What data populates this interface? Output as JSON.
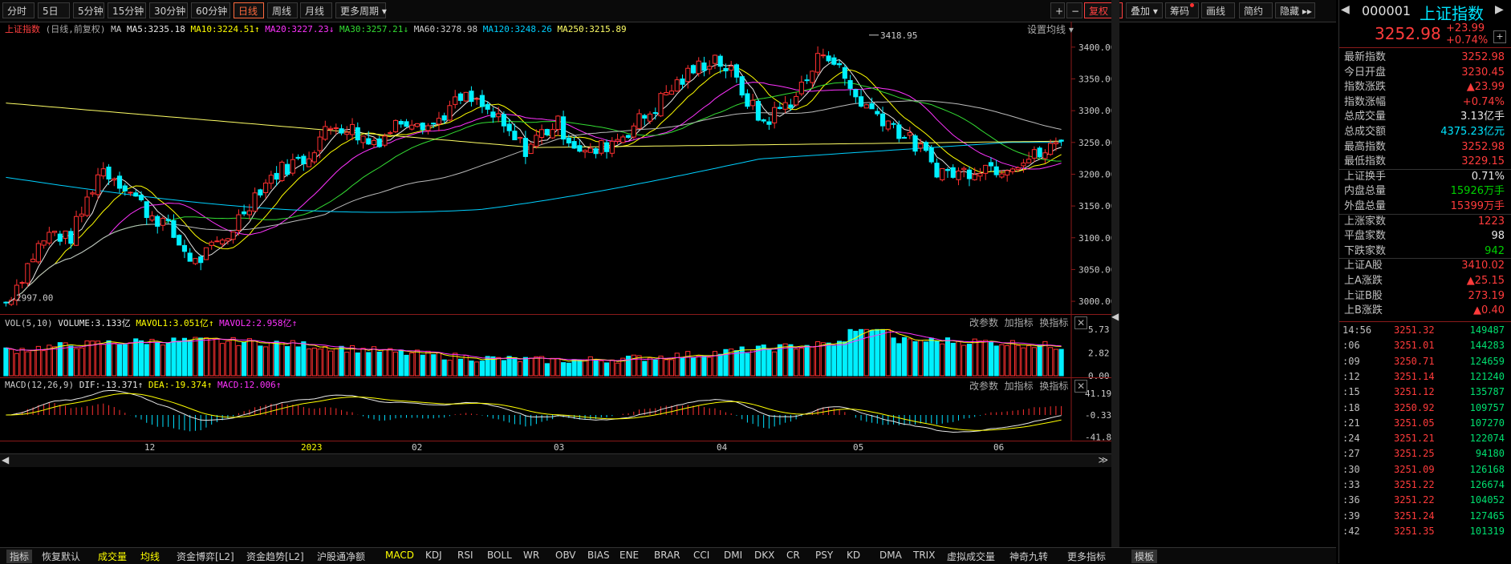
{
  "toolbar": {
    "periods": [
      "分时",
      "5日",
      "5分钟",
      "15分钟",
      "30分钟",
      "60分钟",
      "日线",
      "周线",
      "月线",
      "更多周期"
    ],
    "active": "日线",
    "right_buttons": [
      "+",
      "−",
      "复权",
      "叠加",
      "筹码",
      "画线",
      "简约",
      "隐藏"
    ]
  },
  "main_legend": {
    "index_name": "上证指数",
    "sub": "(日线,前复权)",
    "ma": "MA",
    "ma5": "MA5:3235.18",
    "ma10": "MA10:3224.51",
    "ma20": "MA20:3227.23",
    "ma30": "MA30:3257.21",
    "ma60": "MA60:3278.98",
    "ma120": "MA120:3248.26",
    "ma250": "MA250:3215.89",
    "settings": "设置均线"
  },
  "price_axis": [
    "3400.00",
    "3350.00",
    "3300.00",
    "3250.00",
    "3200.00",
    "3150.00",
    "3100.00",
    "3050.00",
    "3000.00"
  ],
  "annotations": {
    "high": "3418.95",
    "low": "2997.00"
  },
  "vol_legend": {
    "label": "VOL(5,10)",
    "volume": "VOLUME:3.133亿",
    "mavol1": "MAVOL1:3.051亿",
    "mavol2": "MAVOL2:2.958亿",
    "btns": [
      "改参数",
      "加指标",
      "换指标"
    ]
  },
  "vol_axis": [
    "5.73",
    "2.82",
    "0.00"
  ],
  "macd_legend": {
    "label": "MACD(12,26,9)",
    "dif": "DIF:-13.371",
    "dea": "DEA:-19.374",
    "macd": "MACD:12.006",
    "btns": [
      "改参数",
      "加指标",
      "换指标"
    ]
  },
  "macd_axis": [
    "41.19",
    "-0.33",
    "-41.86"
  ],
  "x_axis": [
    "12",
    "2023",
    "02",
    "03",
    "04",
    "05",
    "06"
  ],
  "bottom_tabs": [
    "指标",
    "恢复默认",
    "成交量",
    "均线",
    "资金博弈[L2]",
    "资金趋势[L2]",
    "沪股通净额",
    "MACD",
    "KDJ",
    "RSI",
    "BOLL",
    "WR",
    "OBV",
    "BIAS",
    "ENE",
    "BRAR",
    "CCI",
    "DMI",
    "DKX",
    "CR",
    "PSY",
    "KD",
    "DMA",
    "TRIX",
    "虚拟成交量",
    "神奇九转",
    "更多指标",
    "模板"
  ],
  "quote": {
    "code": "000001",
    "name": "上证指数",
    "price": "3252.98",
    "change": "+23.99",
    "pct": "+0.74%",
    "rows": [
      {
        "k": "最新指数",
        "v": "3252.98",
        "c": "red"
      },
      {
        "k": "今日开盘",
        "v": "3230.45",
        "c": "red"
      },
      {
        "k": "指数涨跌",
        "v": "▲23.99",
        "c": "red"
      },
      {
        "k": "指数涨幅",
        "v": "+0.74%",
        "c": "red"
      },
      {
        "k": "总成交量",
        "v": "3.13亿手",
        "c": "wht"
      },
      {
        "k": "总成交额",
        "v": "4375.23亿元",
        "c": "cyan"
      },
      {
        "k": "最高指数",
        "v": "3252.98",
        "c": "red"
      },
      {
        "k": "最低指数",
        "v": "3229.15",
        "c": "red"
      },
      {
        "k": "上证换手",
        "v": "0.71%",
        "c": "wht"
      },
      {
        "k": "内盘总量",
        "v": "15926万手",
        "c": "grn"
      },
      {
        "k": "外盘总量",
        "v": "15399万手",
        "c": "red"
      },
      {
        "k": "上涨家数",
        "v": "1223",
        "c": "red"
      },
      {
        "k": "平盘家数",
        "v": "98",
        "c": "wht"
      },
      {
        "k": "下跌家数",
        "v": "942",
        "c": "grn"
      },
      {
        "k": "上证A股",
        "v": "3410.02",
        "c": "red"
      },
      {
        "k": "上A涨跌",
        "v": "▲25.15",
        "c": "red"
      },
      {
        "k": "上证B股",
        "v": "273.19",
        "c": "red"
      },
      {
        "k": "上B涨跌",
        "v": "▲0.40",
        "c": "red"
      }
    ],
    "ticks": [
      {
        "t": "14:56",
        "p": "3251.32",
        "q": "149487"
      },
      {
        "t": ":06",
        "p": "3251.01",
        "q": "144283"
      },
      {
        "t": ":09",
        "p": "3250.71",
        "q": "124659"
      },
      {
        "t": ":12",
        "p": "3251.14",
        "q": "121240"
      },
      {
        "t": ":15",
        "p": "3251.12",
        "q": "135787"
      },
      {
        "t": ":18",
        "p": "3250.92",
        "q": "109757"
      },
      {
        "t": ":21",
        "p": "3251.05",
        "q": "107270"
      },
      {
        "t": ":24",
        "p": "3251.21",
        "q": "122074"
      },
      {
        "t": ":27",
        "p": "3251.25",
        "q": "94180"
      },
      {
        "t": ":30",
        "p": "3251.09",
        "q": "126168"
      },
      {
        "t": ":33",
        "p": "3251.22",
        "q": "126674"
      },
      {
        "t": ":36",
        "p": "3251.22",
        "q": "104052"
      },
      {
        "t": ":39",
        "p": "3251.24",
        "q": "127465"
      },
      {
        "t": ":42",
        "p": "3251.35",
        "q": "101319"
      }
    ]
  },
  "chart_data": {
    "type": "candlestick",
    "title": "上证指数 (日线,前复权)",
    "price_range": [
      2990,
      3425
    ],
    "close_path": [
      2998,
      3040,
      3085,
      3110,
      3095,
      3150,
      3210,
      3195,
      3170,
      3140,
      3125,
      3090,
      3060,
      3080,
      3100,
      3140,
      3175,
      3200,
      3215,
      3225,
      3260,
      3280,
      3270,
      3250,
      3260,
      3285,
      3290,
      3275,
      3300,
      3320,
      3310,
      3290,
      3260,
      3240,
      3265,
      3280,
      3250,
      3230,
      3245,
      3260,
      3280,
      3300,
      3330,
      3350,
      3370,
      3385,
      3360,
      3320,
      3280,
      3300,
      3320,
      3355,
      3400,
      3360,
      3320,
      3300,
      3285,
      3260,
      3240,
      3210,
      3200,
      3205,
      3215,
      3210,
      3220,
      3225,
      3235,
      3253
    ],
    "volume_range": [
      0,
      5.73
    ],
    "macd_range": [
      -41.86,
      41.19
    ]
  }
}
